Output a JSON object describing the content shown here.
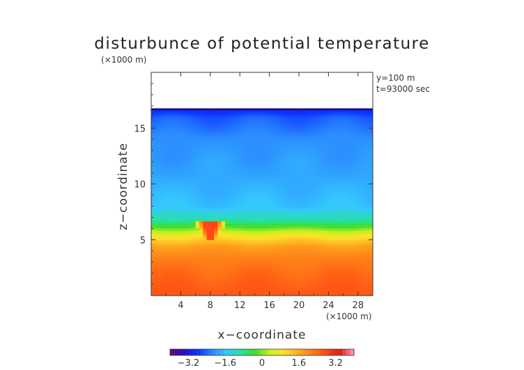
{
  "chart_data": {
    "type": "heatmap",
    "title": "disturbunce of potential temperature",
    "xlabel": "x−coordinate",
    "ylabel": "z−coordinate",
    "x_unit": "(×1000 m)",
    "z_unit": "(×1000 m)",
    "annotations": [
      "y=100 m",
      "t=93000 sec"
    ],
    "xlim": [
      0,
      30
    ],
    "ylim": [
      0,
      20
    ],
    "x_ticks": [
      4,
      8,
      12,
      16,
      20,
      24,
      28
    ],
    "y_ticks": [
      5,
      10,
      15
    ],
    "colorbar": {
      "range": [
        -4,
        4
      ],
      "ticks": [
        -3.2,
        -1.6,
        0,
        1.6,
        3.2
      ],
      "tick_labels": [
        "−3.2",
        "−1.6",
        "0",
        "1.6",
        "3.2"
      ],
      "colors": [
        "#5a0a8c",
        "#2a0ec8",
        "#0b36ff",
        "#2b8cff",
        "#35c8ff",
        "#25e39c",
        "#3ddc2a",
        "#c9f020",
        "#ffe12a",
        "#ffb01e",
        "#ff7f17",
        "#ff4a14",
        "#e01a1a",
        "#ff9fb6"
      ]
    },
    "data_top_z": 16.7,
    "value_profile_by_z": [
      {
        "z": 0.5,
        "value": 2.6
      },
      {
        "z": 2.0,
        "value": 2.4
      },
      {
        "z": 3.5,
        "value": 2.1
      },
      {
        "z": 4.5,
        "value": 1.7
      },
      {
        "z": 5.3,
        "value": 0.9
      },
      {
        "z": 6.0,
        "value": 0.0
      },
      {
        "z": 6.8,
        "value": -1.0
      },
      {
        "z": 8.0,
        "value": -1.6
      },
      {
        "z": 11.0,
        "value": -1.9
      },
      {
        "z": 14.0,
        "value": -2.1
      },
      {
        "z": 16.0,
        "value": -2.5
      },
      {
        "z": 16.7,
        "value": -3.0
      }
    ],
    "anomaly": {
      "x_range": [
        5.5,
        10.5
      ],
      "z_range": [
        5.0,
        6.6
      ],
      "value": 2.8
    }
  }
}
